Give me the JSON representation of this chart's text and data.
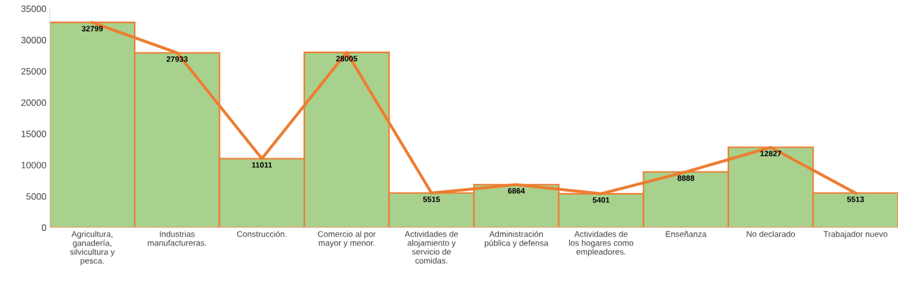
{
  "chart_data": {
    "type": "bar",
    "categories": [
      "Agricultura,\nganadería,\nsilvicultura y\npesca.",
      "Industrias\nmanufactureras.",
      "Construcción.",
      "Comercio al por\nmayor y menor.",
      "Actividades de\nalojamiento y\nservicio de\ncomidas.",
      "Administración\npública y defensa",
      "Actividades de\nlos hogares como\nempleadores.",
      "Enseñanza",
      "No declarado",
      "Trabajador nuevo"
    ],
    "series": [
      {
        "color": "#a9d18e",
        "values": [
          32799,
          27933,
          11011,
          28005,
          5515,
          6864,
          5401,
          8888,
          12827,
          5513
        ],
        "value_labels": [
          "32799",
          "27933",
          "11011",
          "28005",
          "5515",
          "6864",
          "5401",
          "8888",
          "12827",
          "5513"
        ]
      },
      {
        "type": "line",
        "color": "#ed7d31",
        "values": [
          32799,
          27933,
          11011,
          28005,
          5515,
          6864,
          5401,
          8888,
          12827,
          5513
        ]
      }
    ],
    "ylim": [
      0,
      35000
    ],
    "yticks": [
      0,
      5000,
      10000,
      15000,
      20000,
      25000,
      30000,
      35000
    ],
    "grid": false,
    "legend": false
  }
}
